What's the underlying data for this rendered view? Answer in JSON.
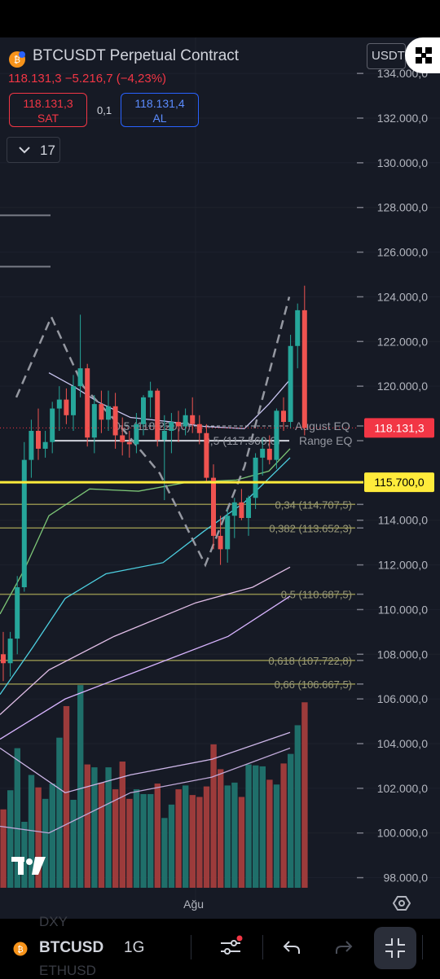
{
  "header": {
    "symbol_title": "BTCUSDT Perpetual Contract",
    "price_change": "118.131,3  −5.216,7 (−4,23%)",
    "sell": {
      "price": "118.131,3",
      "label": "SAT"
    },
    "spread": "0,1",
    "buy": {
      "price": "118.131,4",
      "label": "AL"
    },
    "indicator_count": "17",
    "currency": "USDT"
  },
  "bottom_bar": {
    "symbol": "BTCUSD",
    "interval": "1G",
    "ghost_top": "DXY",
    "ghost_bottom": "ETHUSD"
  },
  "colors": {
    "bull": "#26a69a",
    "bear": "#ef5350",
    "bull_volume": "#1f6f6a",
    "bear_volume": "#9c3b3b",
    "current_price": "#f23645",
    "highlight_level": "#ffeb3b",
    "fib": "#8e8c4c",
    "background": "#161a25"
  },
  "chart_data": {
    "type": "candlestick",
    "symbol": "BTCUSDT Perpetual Contract",
    "interval": "1G",
    "ylim": [
      97000,
      135500
    ],
    "y_ticks": [
      {
        "value": 134000,
        "label": "134.000,0"
      },
      {
        "value": 132000,
        "label": "132.000,0"
      },
      {
        "value": 130000,
        "label": "130.000,0"
      },
      {
        "value": 128000,
        "label": "128.000,0"
      },
      {
        "value": 126000,
        "label": "126.000,0"
      },
      {
        "value": 124000,
        "label": "124.000,0"
      },
      {
        "value": 122000,
        "label": "122.000,0"
      },
      {
        "value": 120000,
        "label": "120.000,0"
      },
      {
        "value": 114000,
        "label": "114.000,0"
      },
      {
        "value": 112000,
        "label": "112.000,0"
      },
      {
        "value": 110000,
        "label": "110.000,0"
      },
      {
        "value": 108000,
        "label": "108.000,0"
      },
      {
        "value": 106000,
        "label": "106.000,0"
      },
      {
        "value": 104000,
        "label": "104.000,0"
      },
      {
        "value": 102000,
        "label": "102.000,0"
      },
      {
        "value": 100000,
        "label": "100.000,0"
      },
      {
        "value": 98000,
        "label": "98.000,0"
      }
    ],
    "x_labels": [
      {
        "index": 46,
        "label": "Ağu"
      }
    ],
    "price_labels": [
      {
        "value": 118131.3,
        "label": "118.131,3",
        "kind": "current"
      },
      {
        "value": 115700,
        "label": "115.700,0",
        "kind": "highlight"
      }
    ],
    "fib_levels": [
      {
        "value": 114707.5,
        "label": "0,34 (114.707,5)"
      },
      {
        "value": 113652.3,
        "label": "0,382 (113.652,3)"
      },
      {
        "value": 110687.5,
        "label": "0,5 (110.687,5)"
      },
      {
        "value": 107722.8,
        "label": "0,618 (107.722,8)"
      },
      {
        "value": 106667.5,
        "label": "0,66 (106.667,5)"
      }
    ],
    "range_levels": [
      {
        "value": 118220,
        "label": "0,5 (118.220,0)",
        "tag": "August EQ"
      },
      {
        "value": 117560,
        "label": "0,5 (117.560,0)",
        "tag": "Range EQ"
      }
    ],
    "candles": [
      {
        "o": 108000,
        "h": 109000,
        "l": 106800,
        "c": 107600
      },
      {
        "o": 107600,
        "h": 109000,
        "l": 107000,
        "c": 108700
      },
      {
        "o": 108700,
        "h": 111500,
        "l": 108000,
        "c": 111000
      },
      {
        "o": 111000,
        "h": 117500,
        "l": 110800,
        "c": 116700
      },
      {
        "o": 116700,
        "h": 118500,
        "l": 115900,
        "c": 118000
      },
      {
        "o": 118000,
        "h": 119000,
        "l": 116700,
        "c": 117200
      },
      {
        "o": 117200,
        "h": 118000,
        "l": 116800,
        "c": 117500
      },
      {
        "o": 117500,
        "h": 119300,
        "l": 117000,
        "c": 119000
      },
      {
        "o": 119000,
        "h": 120000,
        "l": 118000,
        "c": 119400
      },
      {
        "o": 119400,
        "h": 119900,
        "l": 118300,
        "c": 118700
      },
      {
        "o": 118700,
        "h": 120500,
        "l": 118000,
        "c": 120000
      },
      {
        "o": 120000,
        "h": 123200,
        "l": 119500,
        "c": 120800
      },
      {
        "o": 120800,
        "h": 121000,
        "l": 117300,
        "c": 117700
      },
      {
        "o": 117700,
        "h": 119600,
        "l": 117000,
        "c": 119200
      },
      {
        "o": 119200,
        "h": 119800,
        "l": 117900,
        "c": 118500
      },
      {
        "o": 118500,
        "h": 119800,
        "l": 118000,
        "c": 119100
      },
      {
        "o": 119100,
        "h": 119700,
        "l": 117200,
        "c": 117800
      },
      {
        "o": 117800,
        "h": 118600,
        "l": 116900,
        "c": 117500
      },
      {
        "o": 117500,
        "h": 118000,
        "l": 116800,
        "c": 117400
      },
      {
        "o": 117400,
        "h": 118800,
        "l": 117000,
        "c": 118300
      },
      {
        "o": 118300,
        "h": 119600,
        "l": 117800,
        "c": 119500
      },
      {
        "o": 119500,
        "h": 120200,
        "l": 118600,
        "c": 119800
      },
      {
        "o": 119800,
        "h": 119900,
        "l": 117300,
        "c": 117600
      },
      {
        "o": 117600,
        "h": 118700,
        "l": 114900,
        "c": 118000
      },
      {
        "o": 118000,
        "h": 118800,
        "l": 117000,
        "c": 118400
      },
      {
        "o": 118400,
        "h": 118900,
        "l": 117500,
        "c": 118200
      },
      {
        "o": 118200,
        "h": 119000,
        "l": 117800,
        "c": 118700
      },
      {
        "o": 118700,
        "h": 119500,
        "l": 117900,
        "c": 118300
      },
      {
        "o": 118300,
        "h": 118700,
        "l": 117400,
        "c": 117900
      },
      {
        "o": 117900,
        "h": 118300,
        "l": 115700,
        "c": 115900
      },
      {
        "o": 115900,
        "h": 116500,
        "l": 112700,
        "c": 113300
      },
      {
        "o": 113300,
        "h": 114200,
        "l": 112000,
        "c": 112700
      },
      {
        "o": 112700,
        "h": 114500,
        "l": 112100,
        "c": 114200
      },
      {
        "o": 114200,
        "h": 115000,
        "l": 113200,
        "c": 114800
      },
      {
        "o": 114800,
        "h": 115400,
        "l": 114000,
        "c": 114100
      },
      {
        "o": 114100,
        "h": 115100,
        "l": 113300,
        "c": 115000
      },
      {
        "o": 115000,
        "h": 117000,
        "l": 114500,
        "c": 116800
      },
      {
        "o": 116800,
        "h": 117700,
        "l": 116000,
        "c": 117200
      },
      {
        "o": 117200,
        "h": 117800,
        "l": 116500,
        "c": 116700
      },
      {
        "o": 116700,
        "h": 119000,
        "l": 116300,
        "c": 118900
      },
      {
        "o": 118900,
        "h": 119500,
        "l": 118000,
        "c": 118400
      },
      {
        "o": 118400,
        "h": 122300,
        "l": 118100,
        "c": 121800
      },
      {
        "o": 121800,
        "h": 123700,
        "l": 120800,
        "c": 123400
      },
      {
        "o": 123400,
        "h": 124500,
        "l": 117800,
        "c": 118131.3
      }
    ],
    "volume_ylim": [
      0,
      2300
    ],
    "volume": [
      820,
      1020,
      1460,
      690,
      1180,
      1050,
      930,
      1090,
      1570,
      1900,
      920,
      2120,
      1290,
      1260,
      1100,
      1260,
      1030,
      1320,
      930,
      1030,
      980,
      980,
      1090,
      730,
      870,
      1030,
      1070,
      970,
      950,
      1060,
      1500,
      1240,
      1070,
      1100,
      950,
      1290,
      1280,
      1270,
      1130,
      1080,
      1300,
      1400,
      1700,
      1940
    ]
  }
}
